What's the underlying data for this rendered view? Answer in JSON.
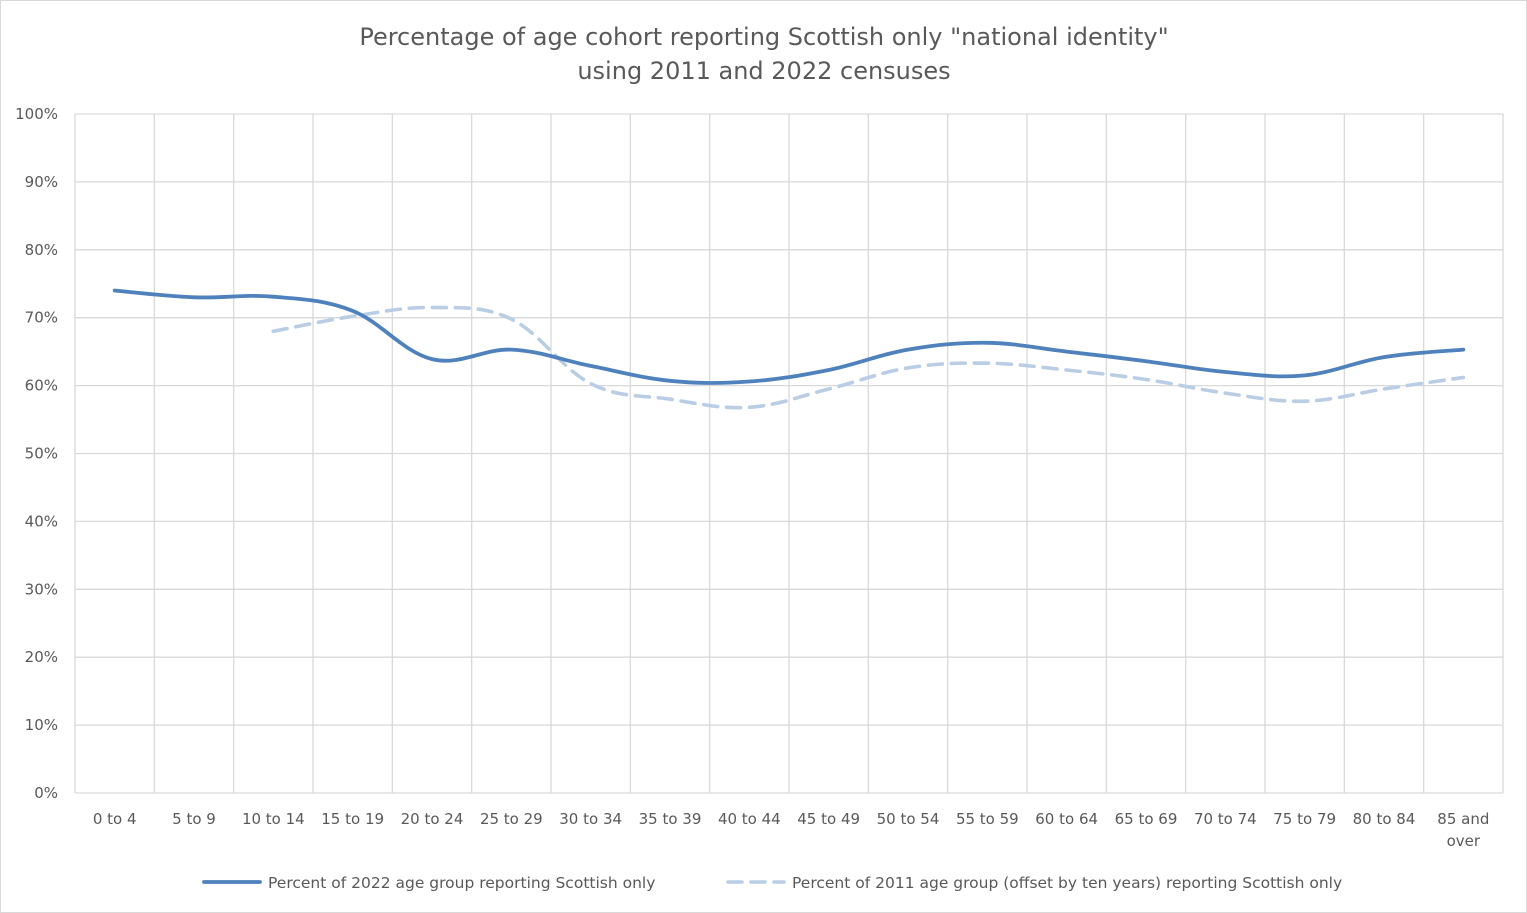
{
  "chart_data": {
    "type": "line",
    "title": [
      "Percentage of age cohort reporting Scottish only \"national identity\"",
      "using 2011 and 2022 censuses"
    ],
    "xlabel": "",
    "ylabel": "",
    "ylim": [
      0,
      100
    ],
    "y_ticks": [
      "0%",
      "10%",
      "20%",
      "30%",
      "40%",
      "50%",
      "60%",
      "70%",
      "80%",
      "90%",
      "100%"
    ],
    "grid": true,
    "legend_position": "bottom",
    "categories": [
      [
        "0 to  4"
      ],
      [
        "5 to 9"
      ],
      [
        "10 to 14"
      ],
      [
        "15 to 19"
      ],
      [
        "20 to 24"
      ],
      [
        "25 to 29"
      ],
      [
        "30 to 34"
      ],
      [
        "35 to 39"
      ],
      [
        "40 to 44"
      ],
      [
        "45 to 49"
      ],
      [
        "50 to 54"
      ],
      [
        "55 to 59"
      ],
      [
        "60 to 64"
      ],
      [
        "65 to 69"
      ],
      [
        "70 to 74"
      ],
      [
        "75 to 79"
      ],
      [
        "80 to 84"
      ],
      [
        "85 and",
        "over"
      ]
    ],
    "series": [
      {
        "name": "Percent of 2022 age group reporting Scottish only",
        "color": "#4f81bd",
        "style": "solid",
        "values": [
          74.0,
          73.0,
          73.1,
          71.0,
          63.9,
          65.3,
          62.9,
          60.7,
          60.6,
          62.3,
          65.3,
          66.3,
          65.0,
          63.6,
          62.0,
          61.5,
          64.2,
          65.3
        ]
      },
      {
        "name": "Percent of 2011 age group (offset by ten years) reporting Scottish only",
        "color": "#b9cde5",
        "style": "dashed",
        "values": [
          null,
          null,
          68.0,
          70.2,
          71.5,
          69.8,
          60.3,
          58.0,
          56.8,
          59.5,
          62.6,
          63.3,
          62.3,
          60.9,
          58.9,
          57.7,
          59.5,
          61.2
        ]
      }
    ]
  }
}
